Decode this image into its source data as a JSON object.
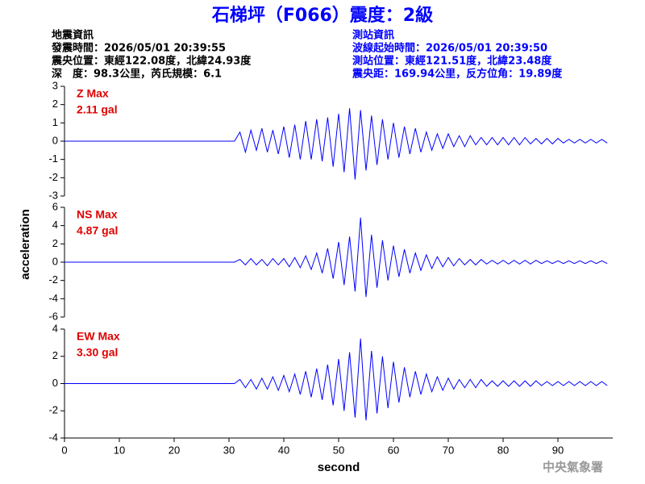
{
  "title": "石梯坪（F066）震度：2級",
  "earthquake_info": [
    "地震資訊",
    "發震時間：2026/05/01 20:39:55",
    "震央位置：東經122.08度，北緯24.93度",
    "深　度：98.3公里，芮氏規模：6.1"
  ],
  "station_info": [
    "測站資訊",
    "波線起始時間：2026/05/01 20:39:50",
    "測站位置：東經121.51度，北緯23.48度",
    "震央距：169.94公里，反方位角：19.89度"
  ],
  "ylabel": "acceleration",
  "footer": "中央氣象署",
  "chart_data": [
    {
      "type": "line",
      "color": "#0000ff",
      "annotations": [
        "Z Max",
        "2.11 gal"
      ],
      "xlim": [
        0,
        100
      ],
      "ylim": [
        -3,
        3
      ],
      "yticks": [
        -3,
        -2,
        -1,
        0,
        1,
        2,
        3
      ],
      "x": [
        0,
        31,
        32,
        33,
        34,
        35,
        36,
        37,
        38,
        39,
        40,
        41,
        42,
        43,
        44,
        45,
        46,
        47,
        48,
        49,
        50,
        51,
        52,
        53,
        54,
        55,
        56,
        57,
        58,
        59,
        60,
        61,
        62,
        63,
        64,
        65,
        66,
        67,
        68,
        69,
        70,
        71,
        72,
        73,
        74,
        75,
        76,
        77,
        78,
        79,
        80,
        81,
        82,
        83,
        84,
        85,
        86,
        87,
        88,
        89,
        90,
        91,
        92,
        93,
        94,
        95,
        96,
        97,
        98,
        99
      ],
      "values": [
        0,
        0,
        0.5,
        -0.6,
        0.6,
        -0.5,
        0.7,
        -0.6,
        0.6,
        -0.7,
        0.8,
        -0.9,
        0.9,
        -1.0,
        1.1,
        -1.0,
        1.2,
        -1.1,
        1.3,
        -1.4,
        1.5,
        -1.7,
        1.8,
        -2.1,
        1.7,
        -1.6,
        1.4,
        -1.3,
        1.2,
        -1.0,
        1.0,
        -0.9,
        0.8,
        -0.7,
        0.7,
        -0.6,
        0.5,
        -0.5,
        0.4,
        -0.4,
        0.4,
        -0.3,
        0.3,
        -0.3,
        0.3,
        -0.2,
        0.2,
        -0.2,
        0.2,
        -0.2,
        0.2,
        -0.2,
        0.2,
        -0.2,
        0.2,
        -0.15,
        0.15,
        -0.15,
        0.15,
        -0.15,
        0.15,
        -0.1,
        0.1,
        -0.1,
        0.1,
        -0.1,
        0.1,
        -0.1,
        0.1,
        -0.1
      ]
    },
    {
      "type": "line",
      "color": "#0000ff",
      "annotations": [
        "NS Max",
        "4.87 gal"
      ],
      "xlim": [
        0,
        100
      ],
      "ylim": [
        -6,
        6
      ],
      "yticks": [
        -6,
        -4,
        -2,
        0,
        2,
        4,
        6
      ],
      "x": [
        0,
        31,
        32,
        33,
        34,
        35,
        36,
        37,
        38,
        39,
        40,
        41,
        42,
        43,
        44,
        45,
        46,
        47,
        48,
        49,
        50,
        51,
        52,
        53,
        54,
        55,
        56,
        57,
        58,
        59,
        60,
        61,
        62,
        63,
        64,
        65,
        66,
        67,
        68,
        69,
        70,
        71,
        72,
        73,
        74,
        75,
        76,
        77,
        78,
        79,
        80,
        81,
        82,
        83,
        84,
        85,
        86,
        87,
        88,
        89,
        90,
        91,
        92,
        93,
        94,
        95,
        96,
        97,
        98,
        99
      ],
      "values": [
        0,
        0,
        0.3,
        -0.3,
        0.4,
        -0.3,
        0.3,
        -0.4,
        0.4,
        -0.3,
        0.4,
        -0.5,
        0.5,
        -0.6,
        0.7,
        -0.8,
        1.0,
        -1.2,
        1.5,
        -1.8,
        2.2,
        -2.5,
        2.8,
        -3.2,
        4.87,
        -3.8,
        3.0,
        -2.8,
        2.4,
        -2.0,
        1.8,
        -1.6,
        1.4,
        -1.2,
        1.0,
        -0.9,
        0.8,
        -0.7,
        0.6,
        -0.5,
        0.5,
        -0.4,
        0.4,
        -0.3,
        0.3,
        -0.3,
        0.3,
        -0.2,
        0.2,
        -0.2,
        0.2,
        -0.2,
        0.2,
        -0.2,
        0.2,
        -0.2,
        0.2,
        -0.15,
        0.15,
        -0.15,
        0.15,
        -0.15,
        0.15,
        -0.15,
        0.15,
        -0.15,
        0.15,
        -0.15,
        0.15,
        -0.15
      ]
    },
    {
      "type": "line",
      "color": "#0000ff",
      "annotations": [
        "EW Max",
        "3.30 gal"
      ],
      "xlim": [
        0,
        100
      ],
      "ylim": [
        -4,
        4
      ],
      "yticks": [
        -4,
        -2,
        0,
        2,
        4
      ],
      "xticks": [
        0,
        10,
        20,
        30,
        40,
        50,
        60,
        70,
        80,
        90
      ],
      "xlabel": "second",
      "x": [
        0,
        31,
        32,
        33,
        34,
        35,
        36,
        37,
        38,
        39,
        40,
        41,
        42,
        43,
        44,
        45,
        46,
        47,
        48,
        49,
        50,
        51,
        52,
        53,
        54,
        55,
        56,
        57,
        58,
        59,
        60,
        61,
        62,
        63,
        64,
        65,
        66,
        67,
        68,
        69,
        70,
        71,
        72,
        73,
        74,
        75,
        76,
        77,
        78,
        79,
        80,
        81,
        82,
        83,
        84,
        85,
        86,
        87,
        88,
        89,
        90,
        91,
        92,
        93,
        94,
        95,
        96,
        97,
        98,
        99
      ],
      "values": [
        0,
        0,
        0.3,
        -0.3,
        0.3,
        -0.4,
        0.4,
        -0.4,
        0.5,
        -0.5,
        0.6,
        -0.6,
        0.7,
        -0.8,
        0.9,
        -1.0,
        1.1,
        -1.2,
        1.4,
        -1.6,
        1.8,
        -2.0,
        2.3,
        -2.5,
        3.3,
        -2.7,
        2.4,
        -2.2,
        2.0,
        -1.8,
        1.6,
        -1.4,
        1.2,
        -1.0,
        0.9,
        -0.8,
        0.7,
        -0.6,
        0.5,
        -0.5,
        0.4,
        -0.4,
        0.3,
        -0.3,
        0.3,
        -0.3,
        0.3,
        -0.2,
        0.2,
        -0.2,
        0.2,
        -0.2,
        0.2,
        -0.2,
        0.2,
        -0.2,
        0.2,
        -0.15,
        0.15,
        -0.15,
        0.15,
        -0.15,
        0.15,
        -0.15,
        0.15,
        -0.15,
        0.15,
        -0.15,
        0.15,
        -0.15
      ]
    }
  ]
}
